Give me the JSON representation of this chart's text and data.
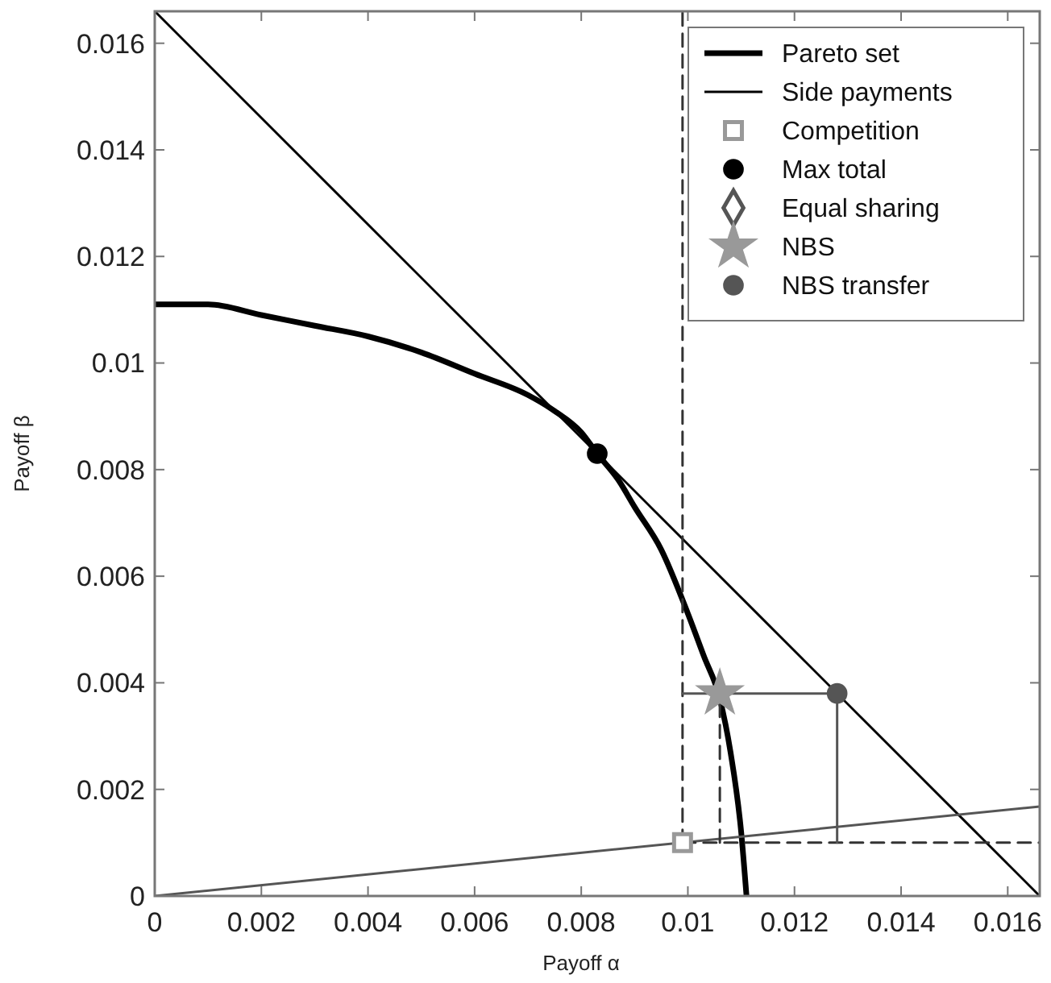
{
  "chart_data": {
    "type": "line",
    "xlabel": "Payoff α",
    "ylabel": "Payoff β",
    "xlim": [
      0,
      0.0166
    ],
    "ylim": [
      0,
      0.0166
    ],
    "xticks": [
      0,
      0.002,
      0.004,
      0.006,
      0.008,
      0.01,
      0.012,
      0.014,
      0.016
    ],
    "yticks": [
      0,
      0.002,
      0.004,
      0.006,
      0.008,
      0.01,
      0.012,
      0.014,
      0.016
    ],
    "grid": false,
    "legend": "top right",
    "series": [
      {
        "name": "Pareto set",
        "color": "#000000",
        "marker": "none",
        "x": [
          0,
          0.001,
          0.002,
          0.003,
          0.004,
          0.005,
          0.006,
          0.007,
          0.0075,
          0.008,
          0.0083,
          0.0087,
          0.009,
          0.0095,
          0.01,
          0.0103,
          0.0106,
          0.0108,
          0.011,
          0.0111
        ],
        "values": [
          0.0111,
          0.0111,
          0.0109,
          0.0107,
          0.0105,
          0.0102,
          0.0098,
          0.0094,
          0.0091,
          0.0087,
          0.0083,
          0.0078,
          0.0073,
          0.0065,
          0.0053,
          0.0045,
          0.0037,
          0.0027,
          0.0012,
          0
        ]
      },
      {
        "name": "Side payments",
        "color": "#000000",
        "marker": "none",
        "x": [
          0,
          0.0166
        ],
        "values": [
          0.0166,
          0
        ]
      },
      {
        "name": "Competition",
        "type": "scatter",
        "color": "#999999",
        "marker": "square",
        "x": [
          0.0099
        ],
        "values": [
          0.001
        ]
      },
      {
        "name": "Max total",
        "type": "scatter",
        "color": "#000000",
        "marker": "circle",
        "x": [
          0.0083
        ],
        "values": [
          0.0083
        ]
      },
      {
        "name": "Equal sharing",
        "type": "scatter",
        "color": "#555555",
        "marker": "diamond"
      },
      {
        "name": "NBS",
        "type": "scatter",
        "color": "#999999",
        "marker": "star",
        "x": [
          0.0106
        ],
        "values": [
          0.0038
        ]
      },
      {
        "name": "NBS transfer",
        "type": "scatter",
        "color": "#555555",
        "marker": "circle",
        "x": [
          0.0128
        ],
        "values": [
          0.0038
        ]
      },
      {
        "type": "line",
        "color": "#555555",
        "marker": "none",
        "x": [
          0,
          0.0166
        ],
        "values": [
          0,
          0.00168
        ]
      },
      {
        "type": "line",
        "color": "#333333",
        "marker": "none",
        "line_style": "dashed",
        "x": [
          0.0099,
          0.0099
        ],
        "values": [
          0.001,
          0.0166
        ]
      },
      {
        "type": "line",
        "color": "#333333",
        "marker": "none",
        "line_style": "dashed",
        "x": [
          0.0099,
          0.0166
        ],
        "values": [
          0.001,
          0.001
        ]
      },
      {
        "type": "line",
        "color": "#333333",
        "marker": "none",
        "line_style": "dashed",
        "x": [
          0.0106,
          0.0106
        ],
        "values": [
          0.001,
          0.0038
        ]
      },
      {
        "type": "line",
        "color": "#555555",
        "marker": "none",
        "x": [
          0.0099,
          0.0128
        ],
        "values": [
          0.0038,
          0.0038
        ]
      },
      {
        "type": "line",
        "color": "#555555",
        "marker": "none",
        "x": [
          0.0128,
          0.0128
        ],
        "values": [
          0.0038,
          0.001
        ]
      }
    ]
  }
}
